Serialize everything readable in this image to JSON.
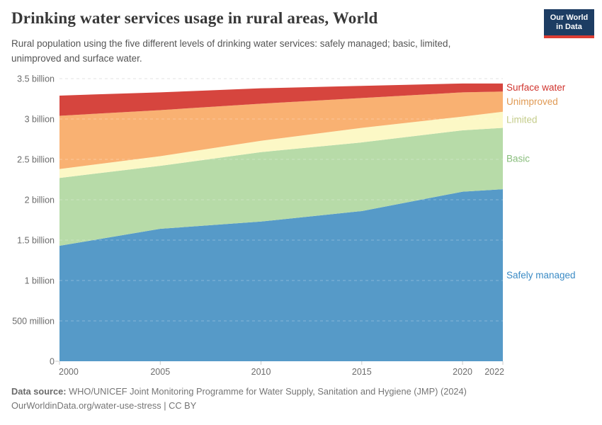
{
  "header": {
    "title": "Drinking water services usage in rural areas, World",
    "subtitle": "Rural population using the five different levels of drinking water services: safely managed; basic, limited, unimproved and surface water.",
    "logo": {
      "line1": "Our World",
      "line2": "in Data",
      "bg_color": "#1d3d63",
      "accent_color": "#dc3d33"
    }
  },
  "chart_data": {
    "type": "area",
    "stacked": true,
    "title": "Drinking water services usage in rural areas, World",
    "xlabel": "",
    "ylabel": "",
    "unit": "people",
    "grid": "dashed",
    "legend_position": "right-edge",
    "xlim": [
      2000,
      2022
    ],
    "ylim": [
      0,
      3.5
    ],
    "x": [
      2000,
      2005,
      2010,
      2015,
      2020,
      2022
    ],
    "x_ticks": [
      2000,
      2005,
      2010,
      2015,
      2020,
      2022
    ],
    "y_ticks": [
      {
        "value": 0,
        "label": "0"
      },
      {
        "value": 0.5,
        "label": "500 million"
      },
      {
        "value": 1,
        "label": "1 billion"
      },
      {
        "value": 1.5,
        "label": "1.5 billion"
      },
      {
        "value": 2,
        "label": "2 billion"
      },
      {
        "value": 2.5,
        "label": "2.5 billion"
      },
      {
        "value": 3,
        "label": "3 billion"
      },
      {
        "value": 3.5,
        "label": "3.5 billion"
      }
    ],
    "value_unit_of_series": "billions of people",
    "series": [
      {
        "name": "Safely managed",
        "color": "#569ac8",
        "label_color": "#3b8bc5",
        "values": [
          1.43,
          1.64,
          1.73,
          1.86,
          2.1,
          2.13
        ]
      },
      {
        "name": "Basic",
        "color": "#b7dba8",
        "label_color": "#88bd7b",
        "values": [
          0.84,
          0.78,
          0.86,
          0.85,
          0.76,
          0.76
        ]
      },
      {
        "name": "Limited",
        "color": "#fcf8c6",
        "label_color": "#c4cc8a",
        "values": [
          0.11,
          0.12,
          0.14,
          0.18,
          0.17,
          0.2
        ]
      },
      {
        "name": "Unimproved",
        "color": "#f9b172",
        "label_color": "#e09a54",
        "values": [
          0.66,
          0.57,
          0.46,
          0.37,
          0.3,
          0.25
        ]
      },
      {
        "name": "Surface water",
        "color": "#d6453e",
        "label_color": "#d0342e",
        "values": [
          0.25,
          0.22,
          0.19,
          0.15,
          0.11,
          0.1
        ]
      }
    ],
    "axis_colors": {
      "grid": "#d9d9d9",
      "tick": "#c8c8c8",
      "label": "#6c6c6c"
    }
  },
  "footer": {
    "source_prefix": "Data source:",
    "source_text": " WHO/UNICEF Joint Monitoring Programme for Water Supply, Sanitation and Hygiene (JMP) (2024)",
    "license_text": "OurWorldinData.org/water-use-stress | CC BY"
  }
}
